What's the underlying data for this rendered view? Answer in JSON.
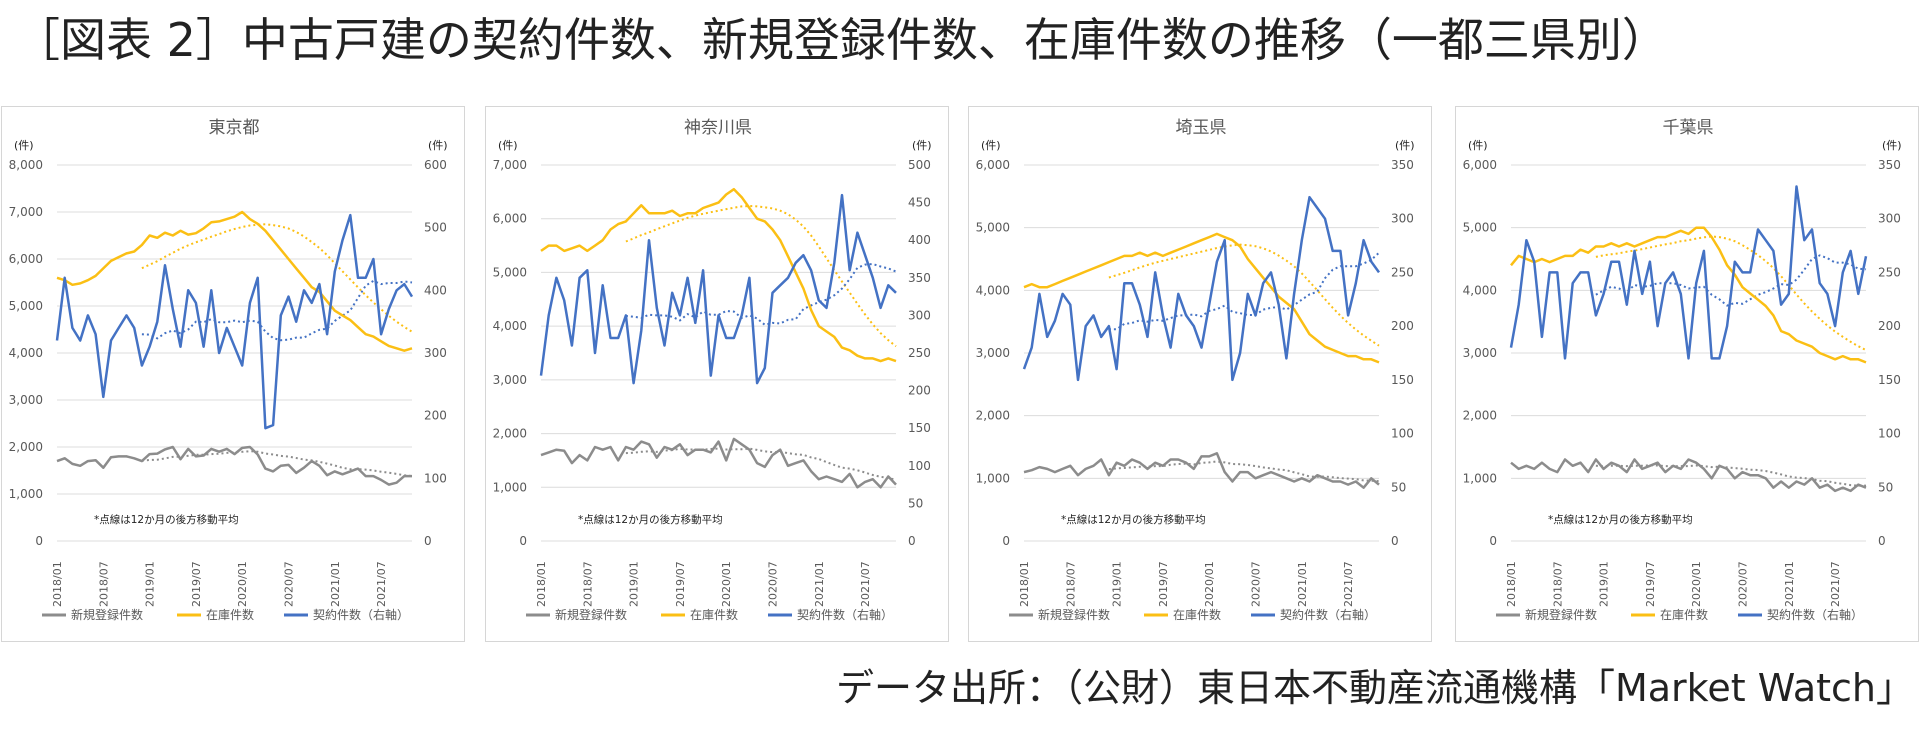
{
  "title": "［図表 2］中古戸建の契約件数、新規登録件数、在庫件数の推移（一都三県別）",
  "source": "データ出所：（公財）東日本不動産流通機構「Market Watch」",
  "colors": {
    "new": "#8c8c8c",
    "inv": "#fbbf14",
    "cont": "#4472c4",
    "grid": "#dcdcdc",
    "text": "#595959"
  },
  "chart_data": [
    {
      "type": "line",
      "title": "東京都",
      "left_unit": "(件)",
      "right_unit": "(件)",
      "ylim": [
        0,
        8000
      ],
      "y_ticks": [
        "0",
        "1,000",
        "2,000",
        "3,000",
        "4,000",
        "5,000",
        "6,000",
        "7,000",
        "8,000"
      ],
      "y2lim": [
        0,
        600
      ],
      "y2_ticks": [
        "0",
        "100",
        "200",
        "300",
        "400",
        "500",
        "600"
      ],
      "x_ticks": [
        "2018/01",
        "2018/07",
        "2019/01",
        "2019/07",
        "2020/01",
        "2020/07",
        "2021/01",
        "2021/07"
      ],
      "note": "*点線は12か月の後方移動平均",
      "legend": [
        "新規登録件数",
        "在庫件数",
        "契約件数（右軸）"
      ],
      "series": {
        "new": [
          1700,
          1760,
          1640,
          1600,
          1700,
          1720,
          1560,
          1780,
          1800,
          1800,
          1760,
          1700,
          1850,
          1860,
          1950,
          2000,
          1740,
          1960,
          1800,
          1820,
          1960,
          1900,
          1960,
          1850,
          1980,
          2000,
          1840,
          1540,
          1480,
          1600,
          1620,
          1450,
          1560,
          1700,
          1600,
          1400,
          1480,
          1420,
          1480,
          1540,
          1380,
          1380,
          1300,
          1200,
          1240,
          1380,
          1380
        ],
        "inv": [
          5600,
          5550,
          5450,
          5480,
          5550,
          5640,
          5800,
          5960,
          6040,
          6120,
          6160,
          6300,
          6500,
          6450,
          6560,
          6500,
          6600,
          6520,
          6550,
          6650,
          6780,
          6800,
          6850,
          6900,
          7000,
          6850,
          6750,
          6600,
          6400,
          6200,
          6000,
          5800,
          5600,
          5400,
          5300,
          5100,
          4900,
          4800,
          4700,
          4550,
          4400,
          4350,
          4250,
          4150,
          4100,
          4050,
          4100
        ],
        "cont": [
          320,
          420,
          340,
          320,
          360,
          330,
          230,
          320,
          340,
          360,
          340,
          280,
          310,
          350,
          440,
          370,
          310,
          400,
          380,
          310,
          400,
          300,
          340,
          310,
          280,
          380,
          420,
          180,
          185,
          360,
          390,
          350,
          400,
          380,
          410,
          330,
          430,
          480,
          520,
          420,
          420,
          450,
          330,
          370,
          400,
          410,
          390
        ]
      }
    },
    {
      "type": "line",
      "title": "神奈川県",
      "left_unit": "(件)",
      "right_unit": "(件)",
      "ylim": [
        0,
        7000
      ],
      "y_ticks": [
        "0",
        "1,000",
        "2,000",
        "3,000",
        "4,000",
        "5,000",
        "6,000",
        "7,000"
      ],
      "y2lim": [
        0,
        500
      ],
      "y2_ticks": [
        "0",
        "50",
        "100",
        "150",
        "200",
        "250",
        "300",
        "350",
        "400",
        "450",
        "500"
      ],
      "x_ticks": [
        "2018/01",
        "2018/07",
        "2019/01",
        "2019/07",
        "2020/01",
        "2020/07",
        "2021/01",
        "2021/07"
      ],
      "note": "*点線は12か月の後方移動平均",
      "legend": [
        "新規登録件数",
        "在庫件数",
        "契約件数（右軸）"
      ],
      "series": {
        "new": [
          1600,
          1650,
          1700,
          1680,
          1450,
          1600,
          1500,
          1750,
          1700,
          1750,
          1500,
          1750,
          1700,
          1850,
          1800,
          1550,
          1750,
          1700,
          1800,
          1600,
          1700,
          1700,
          1650,
          1850,
          1500,
          1900,
          1800,
          1700,
          1450,
          1380,
          1600,
          1700,
          1400,
          1450,
          1500,
          1300,
          1150,
          1200,
          1150,
          1100,
          1250,
          1000,
          1100,
          1150,
          1000,
          1200,
          1050
        ],
        "inv": [
          5400,
          5500,
          5500,
          5400,
          5450,
          5500,
          5400,
          5500,
          5600,
          5800,
          5900,
          5950,
          6100,
          6250,
          6100,
          6100,
          6100,
          6150,
          6050,
          6100,
          6100,
          6200,
          6250,
          6300,
          6450,
          6550,
          6400,
          6200,
          6000,
          5950,
          5800,
          5600,
          5300,
          5000,
          4700,
          4300,
          4000,
          3900,
          3800,
          3600,
          3550,
          3450,
          3400,
          3400,
          3350,
          3400,
          3350
        ],
        "cont": [
          220,
          300,
          350,
          320,
          260,
          350,
          360,
          250,
          340,
          270,
          270,
          300,
          210,
          280,
          400,
          310,
          260,
          330,
          300,
          350,
          290,
          360,
          220,
          300,
          270,
          270,
          300,
          350,
          210,
          230,
          330,
          340,
          350,
          370,
          380,
          360,
          320,
          310,
          370,
          460,
          360,
          410,
          380,
          350,
          310,
          340,
          330
        ]
      }
    },
    {
      "type": "line",
      "title": "埼玉県",
      "left_unit": "(件)",
      "right_unit": "(件)",
      "ylim": [
        0,
        6000
      ],
      "y_ticks": [
        "0",
        "1,000",
        "2,000",
        "3,000",
        "4,000",
        "5,000",
        "6,000"
      ],
      "y2lim": [
        0,
        350
      ],
      "y2_ticks": [
        "0",
        "50",
        "100",
        "150",
        "200",
        "250",
        "300",
        "350"
      ],
      "x_ticks": [
        "2018/01",
        "2018/07",
        "2019/01",
        "2019/07",
        "2020/01",
        "2020/07",
        "2021/01",
        "2021/07"
      ],
      "note": "*点線は12か月の後方移動平均",
      "legend": [
        "新規登録件数",
        "在庫件数",
        "契約件数（右軸）"
      ],
      "series": {
        "new": [
          1100,
          1130,
          1180,
          1150,
          1100,
          1150,
          1200,
          1050,
          1150,
          1200,
          1300,
          1050,
          1250,
          1200,
          1300,
          1250,
          1150,
          1250,
          1200,
          1300,
          1300,
          1250,
          1150,
          1350,
          1350,
          1400,
          1100,
          950,
          1100,
          1100,
          1000,
          1050,
          1100,
          1050,
          1000,
          950,
          1000,
          950,
          1050,
          1000,
          950,
          950,
          900,
          950,
          850,
          1000,
          900
        ],
        "inv": [
          4050,
          4100,
          4050,
          4050,
          4100,
          4150,
          4200,
          4250,
          4300,
          4350,
          4400,
          4450,
          4500,
          4550,
          4550,
          4600,
          4550,
          4600,
          4550,
          4600,
          4650,
          4700,
          4750,
          4800,
          4850,
          4900,
          4850,
          4800,
          4700,
          4500,
          4350,
          4200,
          4050,
          3900,
          3800,
          3700,
          3500,
          3300,
          3200,
          3100,
          3050,
          3000,
          2950,
          2950,
          2900,
          2900,
          2850
        ],
        "cont": [
          160,
          180,
          230,
          190,
          205,
          230,
          220,
          150,
          200,
          210,
          190,
          200,
          160,
          240,
          240,
          220,
          190,
          250,
          210,
          180,
          230,
          210,
          200,
          180,
          220,
          260,
          280,
          150,
          175,
          230,
          210,
          240,
          250,
          220,
          170,
          230,
          280,
          320,
          310,
          300,
          270,
          270,
          210,
          240,
          280,
          260,
          250
        ]
      }
    },
    {
      "type": "line",
      "title": "千葉県",
      "left_unit": "(件)",
      "right_unit": "(件)",
      "ylim": [
        0,
        6000
      ],
      "y_ticks": [
        "0",
        "1,000",
        "2,000",
        "3,000",
        "4,000",
        "5,000",
        "6,000"
      ],
      "y2lim": [
        0,
        350
      ],
      "y2_ticks": [
        "0",
        "50",
        "100",
        "150",
        "200",
        "250",
        "300",
        "350"
      ],
      "x_ticks": [
        "2018/01",
        "2018/07",
        "2019/01",
        "2019/07",
        "2020/01",
        "2020/07",
        "2021/01",
        "2021/07"
      ],
      "note": "*点線は12か月の後方移動平均",
      "legend": [
        "新規登録件数",
        "在庫件数",
        "契約件数（右軸）"
      ],
      "series": {
        "new": [
          1250,
          1150,
          1200,
          1150,
          1250,
          1150,
          1100,
          1300,
          1200,
          1250,
          1100,
          1300,
          1150,
          1250,
          1200,
          1100,
          1300,
          1150,
          1200,
          1250,
          1100,
          1200,
          1150,
          1300,
          1250,
          1150,
          1000,
          1200,
          1150,
          1000,
          1100,
          1050,
          1050,
          1000,
          850,
          950,
          850,
          950,
          900,
          1000,
          850,
          900,
          800,
          850,
          800,
          900,
          850
        ],
        "inv": [
          4400,
          4550,
          4500,
          4450,
          4500,
          4450,
          4500,
          4550,
          4550,
          4650,
          4600,
          4700,
          4700,
          4750,
          4700,
          4750,
          4700,
          4750,
          4800,
          4850,
          4850,
          4900,
          4950,
          4900,
          5000,
          5000,
          4850,
          4650,
          4400,
          4250,
          4050,
          3950,
          3850,
          3750,
          3600,
          3350,
          3300,
          3200,
          3150,
          3100,
          3000,
          2950,
          2900,
          2950,
          2900,
          2900,
          2850
        ],
        "cont": [
          180,
          220,
          280,
          260,
          190,
          250,
          250,
          170,
          240,
          250,
          250,
          210,
          230,
          260,
          260,
          220,
          270,
          230,
          260,
          200,
          240,
          250,
          230,
          170,
          240,
          270,
          170,
          170,
          200,
          260,
          250,
          250,
          290,
          280,
          270,
          220,
          230,
          330,
          280,
          290,
          240,
          230,
          200,
          250,
          270,
          230,
          265
        ]
      }
    }
  ]
}
